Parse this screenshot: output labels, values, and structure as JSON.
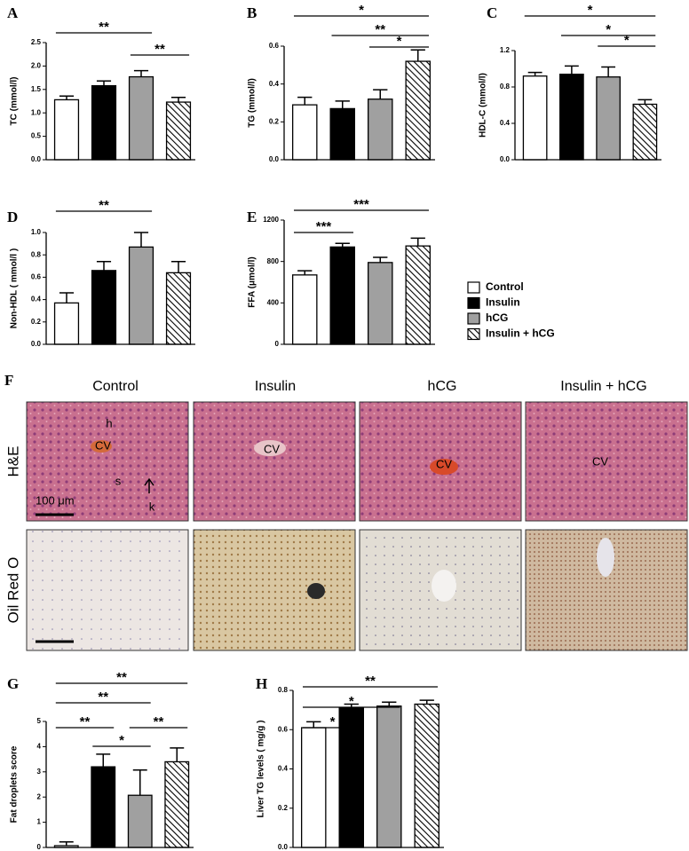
{
  "legend": [
    {
      "name": "Control",
      "fill": "#ffffff"
    },
    {
      "name": "Insulin",
      "fill": "#000000"
    },
    {
      "name": "hCG",
      "fill": "#a0a0a0"
    },
    {
      "name": "Insulin + hCG",
      "fill": "hatch"
    }
  ],
  "chart_data": [
    {
      "type": "bar",
      "panel": "A",
      "ylabel": "TC (mmol/l)",
      "values": [
        1.28,
        1.58,
        1.77,
        1.23
      ],
      "errors": [
        0.08,
        0.1,
        0.13,
        0.1
      ],
      "ylim": [
        0,
        2.5
      ],
      "yticks": [
        {
          "value": 0,
          "label": "0.0"
        },
        {
          "value": 0.5,
          "label": "0.5"
        },
        {
          "value": 1,
          "label": "1.0"
        },
        {
          "value": 1.5,
          "label": "1.5"
        },
        {
          "value": 2,
          "label": "2.0"
        },
        {
          "value": 2.5,
          "label": "2.5"
        }
      ],
      "brackets": [
        {
          "between": [
            "Control",
            "hCG"
          ],
          "label": "**"
        },
        {
          "between": [
            "hCG",
            "Insulin + hCG"
          ],
          "label": "**"
        }
      ]
    },
    {
      "type": "bar",
      "panel": "B",
      "ylabel": "TG (mmol/l)",
      "values": [
        0.29,
        0.27,
        0.32,
        0.52
      ],
      "errors": [
        0.04,
        0.04,
        0.05,
        0.06
      ],
      "ylim": [
        0,
        0.6
      ],
      "yticks": [
        {
          "value": 0,
          "label": "0.0"
        },
        {
          "value": 0.2,
          "label": "0.2"
        },
        {
          "value": 0.4,
          "label": "0.4"
        },
        {
          "value": 0.6,
          "label": "0.6"
        }
      ],
      "brackets": [
        {
          "between": [
            "Control",
            "Insulin + hCG"
          ],
          "label": "*"
        },
        {
          "between": [
            "Insulin",
            "Insulin + hCG"
          ],
          "label": "**"
        },
        {
          "between": [
            "hCG",
            "Insulin + hCG"
          ],
          "label": "*"
        }
      ]
    },
    {
      "type": "bar",
      "panel": "C",
      "ylabel": "HDL-C (mmol/l)",
      "values": [
        0.92,
        0.94,
        0.91,
        0.61
      ],
      "errors": [
        0.04,
        0.09,
        0.11,
        0.05
      ],
      "ylim": [
        0,
        1.2
      ],
      "yticks": [
        {
          "value": 0,
          "label": "0.0"
        },
        {
          "value": 0.4,
          "label": "0.4"
        },
        {
          "value": 0.8,
          "label": "0.8"
        },
        {
          "value": 1.2,
          "label": "1.2"
        }
      ],
      "brackets": [
        {
          "between": [
            "Control",
            "Insulin + hCG"
          ],
          "label": "*"
        },
        {
          "between": [
            "Insulin",
            "Insulin + hCG"
          ],
          "label": "*"
        },
        {
          "between": [
            "hCG",
            "Insulin + hCG"
          ],
          "label": "*"
        }
      ]
    },
    {
      "type": "bar",
      "panel": "D",
      "ylabel": "Non-HDL ( mmol/l )",
      "values": [
        0.37,
        0.66,
        0.87,
        0.64
      ],
      "errors": [
        0.09,
        0.08,
        0.13,
        0.1
      ],
      "ylim": [
        0,
        1.0
      ],
      "yticks": [
        {
          "value": 0,
          "label": "0.0"
        },
        {
          "value": 0.2,
          "label": "0.2"
        },
        {
          "value": 0.4,
          "label": "0.4"
        },
        {
          "value": 0.6,
          "label": "0.6"
        },
        {
          "value": 0.8,
          "label": "0.8"
        },
        {
          "value": 1,
          "label": "1.0"
        }
      ],
      "brackets": [
        {
          "between": [
            "Control",
            "hCG"
          ],
          "label": "**"
        }
      ]
    },
    {
      "type": "bar",
      "panel": "E",
      "ylabel": "FFA (μmol/l)",
      "values": [
        670,
        940,
        790,
        950
      ],
      "errors": [
        40,
        35,
        50,
        75
      ],
      "ylim": [
        0,
        1200
      ],
      "yticks": [
        0,
        400,
        800,
        1200
      ],
      "brackets": [
        {
          "between": [
            "Control",
            "Insulin + hCG"
          ],
          "label": "***"
        },
        {
          "between": [
            "Control",
            "Insulin"
          ],
          "label": "***"
        }
      ]
    },
    {
      "type": "bar",
      "panel": "G",
      "ylabel": "Fat droplets score",
      "values": [
        0.07,
        3.2,
        2.07,
        3.4
      ],
      "errors": [
        0.15,
        0.5,
        1.0,
        0.55
      ],
      "ylim": [
        0,
        5
      ],
      "yticks": [
        0,
        1,
        2,
        3,
        4,
        5
      ],
      "brackets": [
        {
          "between": [
            "Control",
            "Insulin + hCG"
          ],
          "label": "**"
        },
        {
          "between": [
            "Control",
            "hCG"
          ],
          "label": "**"
        },
        {
          "between": [
            "Control",
            "Insulin"
          ],
          "label": "**"
        },
        {
          "between": [
            "hCG",
            "Insulin + hCG"
          ],
          "label": "**"
        },
        {
          "between": [
            "Insulin",
            "hCG"
          ],
          "label": "*"
        }
      ]
    },
    {
      "type": "bar",
      "panel": "H",
      "ylabel": "Liver TG levels ( mg/g )",
      "values": [
        0.61,
        0.71,
        0.72,
        0.73
      ],
      "errors": [
        0.03,
        0.02,
        0.02,
        0.02
      ],
      "ylim": [
        0,
        0.8
      ],
      "yticks": [
        {
          "value": 0,
          "label": "0.0"
        },
        {
          "value": 0.2,
          "label": "0.2"
        },
        {
          "value": 0.4,
          "label": "0.4"
        },
        {
          "value": 0.6,
          "label": "0.6"
        },
        {
          "value": 0.8,
          "label": "0.8"
        }
      ],
      "brackets": [
        {
          "between": [
            "Control",
            "Insulin + hCG"
          ],
          "label": "**"
        },
        {
          "between": [
            "Control",
            "hCG"
          ],
          "label": "*"
        },
        {
          "between": [
            "Control",
            "Insulin"
          ],
          "label": "*"
        }
      ]
    }
  ],
  "micrographs": {
    "panel": "F",
    "columns": [
      "Control",
      "Insulin",
      "hCG",
      "Insulin + hCG"
    ],
    "rows": [
      "H&E",
      "Oil Red O"
    ],
    "annotations": [
      "h",
      "CV",
      "s",
      "k",
      "100 μm",
      "CV",
      "CV",
      "CV"
    ]
  }
}
